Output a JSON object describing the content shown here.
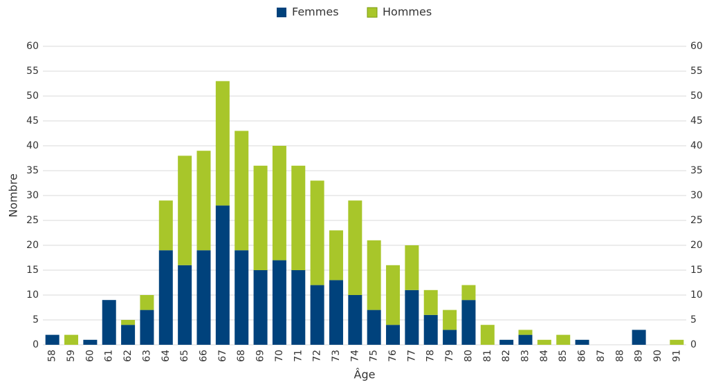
{
  "chart_data": {
    "type": "bar",
    "stacked": true,
    "x_label": "Âge",
    "y_label": "Nombre",
    "categories": [
      "58",
      "59",
      "60",
      "61",
      "62",
      "63",
      "64",
      "65",
      "66",
      "67",
      "68",
      "69",
      "70",
      "71",
      "72",
      "73",
      "74",
      "75",
      "76",
      "77",
      "78",
      "79",
      "80",
      "81",
      "82",
      "83",
      "84",
      "85",
      "86",
      "87",
      "88",
      "89",
      "90",
      "91"
    ],
    "series": [
      {
        "name": "Femmes",
        "color": "#00427c",
        "values": [
          2,
          0,
          1,
          9,
          4,
          7,
          19,
          16,
          19,
          28,
          19,
          15,
          17,
          15,
          12,
          13,
          10,
          7,
          4,
          11,
          6,
          3,
          9,
          0,
          1,
          2,
          0,
          0,
          1,
          0,
          0,
          3,
          0,
          0
        ]
      },
      {
        "name": "Hommes",
        "color": "#a8c62a",
        "values": [
          0,
          2,
          0,
          0,
          1,
          3,
          10,
          22,
          20,
          25,
          24,
          21,
          23,
          21,
          21,
          10,
          19,
          14,
          12,
          9,
          5,
          4,
          3,
          4,
          0,
          1,
          1,
          2,
          0,
          0,
          0,
          0,
          0,
          1
        ]
      }
    ],
    "ylim": [
      0,
      60
    ],
    "yticks": [
      0,
      5,
      10,
      15,
      20,
      25,
      30,
      35,
      40,
      45,
      50,
      55,
      60
    ],
    "y2lim": [
      0,
      60
    ],
    "y2ticks": [
      0,
      5,
      10,
      15,
      20,
      25,
      30,
      35,
      40,
      45,
      50,
      55,
      60
    ],
    "grid": true,
    "legend": "top"
  }
}
